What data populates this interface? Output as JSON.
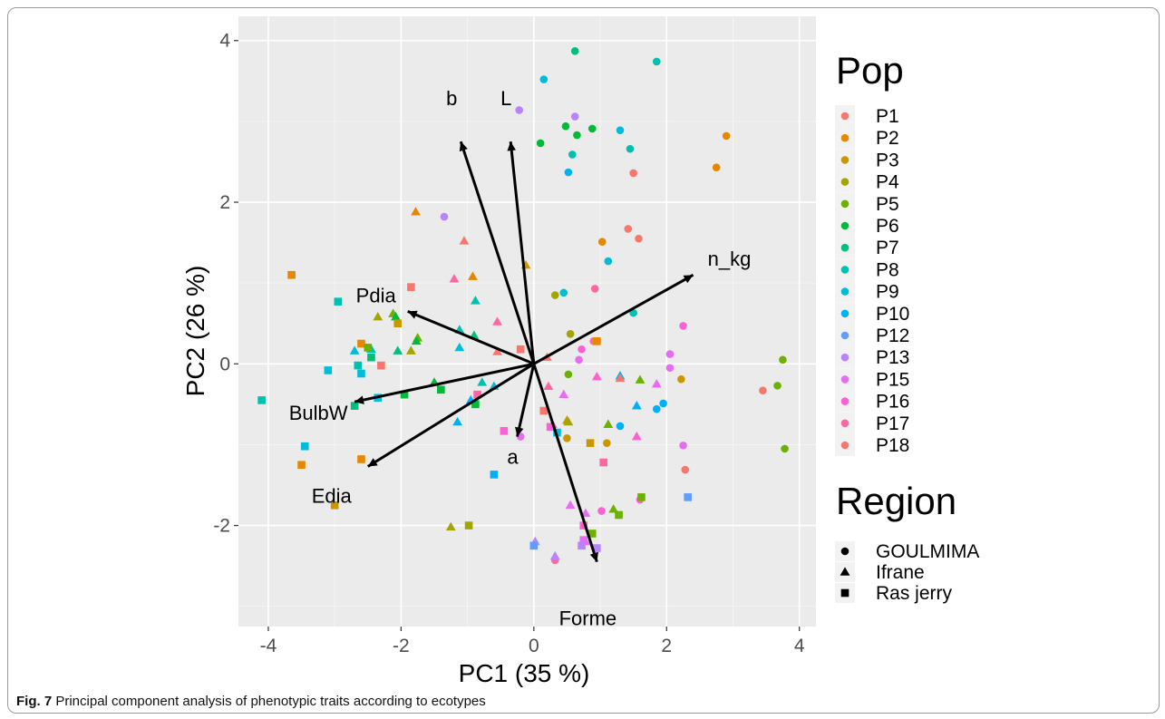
{
  "figure_caption": {
    "label": "Fig. 7",
    "text": "Principal component analysis of phenotypic traits according to ecotypes"
  },
  "chart_data": {
    "type": "scatter",
    "subtype": "pca-biplot",
    "xlabel": "PC1 (35 %)",
    "ylabel": "PC2 (26 %)",
    "xlim": [
      -4.45,
      4.25
    ],
    "ylim": [
      -3.25,
      4.3
    ],
    "xticks": [
      -4,
      -2,
      0,
      2,
      4
    ],
    "yticks": [
      -2,
      0,
      2,
      4
    ],
    "grid": true,
    "legend_position": "right",
    "legend_color_title": "Pop",
    "legend_shape_title": "Region",
    "populations": [
      "P1",
      "P2",
      "P3",
      "P4",
      "P5",
      "P6",
      "P7",
      "P8",
      "P9",
      "P10",
      "P12",
      "P13",
      "P15",
      "P16",
      "P17",
      "P18"
    ],
    "colors": {
      "P1": "#f8766d",
      "P2": "#e58700",
      "P3": "#c99800",
      "P4": "#a3a500",
      "P5": "#6bb100",
      "P6": "#00ba38",
      "P7": "#00bf7d",
      "P8": "#00c0af",
      "P9": "#00bcd8",
      "P10": "#00b0f6",
      "P12": "#619cff",
      "P13": "#b983ff",
      "P15": "#e76bf3",
      "P16": "#fd61d1",
      "P17": "#ff67a4",
      "P18": "#f8766d"
    },
    "regions": [
      {
        "name": "GOULMIMA",
        "shape": "circle"
      },
      {
        "name": "Ifrane",
        "shape": "triangle"
      },
      {
        "name": "Ras jerry",
        "shape": "square"
      }
    ],
    "vectors": [
      {
        "label": "b",
        "x": -1.1,
        "y": 2.75
      },
      {
        "label": "L",
        "x": -0.35,
        "y": 2.75
      },
      {
        "label": "n_kg",
        "x": 2.4,
        "y": 1.1
      },
      {
        "label": "Pdia",
        "x": -1.9,
        "y": 0.65
      },
      {
        "label": "BulbW",
        "x": -2.7,
        "y": -0.47
      },
      {
        "label": "Edia",
        "x": -2.5,
        "y": -1.27
      },
      {
        "label": "a",
        "x": -0.25,
        "y": -0.9
      },
      {
        "label": "Forme",
        "x": 0.95,
        "y": -2.45
      }
    ],
    "points": [
      {
        "x": 0.62,
        "y": 3.87,
        "shape": "circle",
        "pop": "P7"
      },
      {
        "x": 1.85,
        "y": 3.74,
        "shape": "circle",
        "pop": "P8"
      },
      {
        "x": 0.15,
        "y": 3.52,
        "shape": "circle",
        "pop": "P9"
      },
      {
        "x": -0.22,
        "y": 3.14,
        "shape": "circle",
        "pop": "P13"
      },
      {
        "x": 0.62,
        "y": 3.06,
        "shape": "circle",
        "pop": "P13"
      },
      {
        "x": 0.48,
        "y": 2.94,
        "shape": "circle",
        "pop": "P6"
      },
      {
        "x": 0.88,
        "y": 2.91,
        "shape": "circle",
        "pop": "P6"
      },
      {
        "x": 0.65,
        "y": 2.83,
        "shape": "circle",
        "pop": "P6"
      },
      {
        "x": 1.3,
        "y": 2.89,
        "shape": "circle",
        "pop": "P9"
      },
      {
        "x": 2.9,
        "y": 2.82,
        "shape": "circle",
        "pop": "P2"
      },
      {
        "x": 0.1,
        "y": 2.73,
        "shape": "circle",
        "pop": "P6"
      },
      {
        "x": 1.45,
        "y": 2.66,
        "shape": "circle",
        "pop": "P8"
      },
      {
        "x": 0.58,
        "y": 2.59,
        "shape": "circle",
        "pop": "P8"
      },
      {
        "x": 2.75,
        "y": 2.43,
        "shape": "circle",
        "pop": "P2"
      },
      {
        "x": 0.52,
        "y": 2.37,
        "shape": "circle",
        "pop": "P10"
      },
      {
        "x": 1.5,
        "y": 2.36,
        "shape": "circle",
        "pop": "P1"
      },
      {
        "x": -1.35,
        "y": 1.82,
        "shape": "circle",
        "pop": "P13"
      },
      {
        "x": 1.42,
        "y": 1.67,
        "shape": "circle",
        "pop": "P18"
      },
      {
        "x": 1.58,
        "y": 1.55,
        "shape": "circle",
        "pop": "P1"
      },
      {
        "x": 1.03,
        "y": 1.51,
        "shape": "circle",
        "pop": "P2"
      },
      {
        "x": 1.12,
        "y": 1.27,
        "shape": "circle",
        "pop": "P9"
      },
      {
        "x": 0.92,
        "y": 0.93,
        "shape": "circle",
        "pop": "P17"
      },
      {
        "x": 0.45,
        "y": 0.88,
        "shape": "circle",
        "pop": "P9"
      },
      {
        "x": 0.32,
        "y": 0.85,
        "shape": "circle",
        "pop": "P4"
      },
      {
        "x": 1.5,
        "y": 0.63,
        "shape": "circle",
        "pop": "P8"
      },
      {
        "x": 2.25,
        "y": 0.47,
        "shape": "circle",
        "pop": "P16"
      },
      {
        "x": 0.55,
        "y": 0.37,
        "shape": "circle",
        "pop": "P4"
      },
      {
        "x": 0.9,
        "y": 0.28,
        "shape": "circle",
        "pop": "P17"
      },
      {
        "x": 0.72,
        "y": 0.18,
        "shape": "circle",
        "pop": "P16"
      },
      {
        "x": 2.05,
        "y": 0.12,
        "shape": "circle",
        "pop": "P15"
      },
      {
        "x": 3.75,
        "y": 0.05,
        "shape": "circle",
        "pop": "P5"
      },
      {
        "x": 0.68,
        "y": 0.05,
        "shape": "circle",
        "pop": "P15"
      },
      {
        "x": 2.05,
        "y": -0.05,
        "shape": "circle",
        "pop": "P15"
      },
      {
        "x": 0.52,
        "y": -0.13,
        "shape": "circle",
        "pop": "P5"
      },
      {
        "x": 2.22,
        "y": -0.19,
        "shape": "circle",
        "pop": "P3"
      },
      {
        "x": 3.67,
        "y": -0.27,
        "shape": "circle",
        "pop": "P5"
      },
      {
        "x": 3.45,
        "y": -0.33,
        "shape": "circle",
        "pop": "P18"
      },
      {
        "x": 1.95,
        "y": -0.49,
        "shape": "circle",
        "pop": "P10"
      },
      {
        "x": 1.85,
        "y": -0.56,
        "shape": "circle",
        "pop": "P10"
      },
      {
        "x": 1.3,
        "y": -0.77,
        "shape": "circle",
        "pop": "P10"
      },
      {
        "x": -0.2,
        "y": -0.9,
        "shape": "circle",
        "pop": "P15"
      },
      {
        "x": 0.5,
        "y": -0.92,
        "shape": "circle",
        "pop": "P3"
      },
      {
        "x": 1.1,
        "y": -0.98,
        "shape": "circle",
        "pop": "P3"
      },
      {
        "x": 2.25,
        "y": -1.01,
        "shape": "circle",
        "pop": "P15"
      },
      {
        "x": 3.78,
        "y": -1.05,
        "shape": "circle",
        "pop": "P5"
      },
      {
        "x": 2.28,
        "y": -1.31,
        "shape": "circle",
        "pop": "P18"
      },
      {
        "x": 1.6,
        "y": -1.68,
        "shape": "circle",
        "pop": "P16"
      },
      {
        "x": 1.02,
        "y": -1.82,
        "shape": "circle",
        "pop": "P16"
      },
      {
        "x": 0.32,
        "y": -2.43,
        "shape": "circle",
        "pop": "P17"
      },
      {
        "x": -1.78,
        "y": 1.88,
        "shape": "triangle",
        "pop": "P2"
      },
      {
        "x": -1.05,
        "y": 1.52,
        "shape": "triangle",
        "pop": "P18"
      },
      {
        "x": -0.12,
        "y": 1.22,
        "shape": "triangle",
        "pop": "P3"
      },
      {
        "x": -1.2,
        "y": 1.05,
        "shape": "triangle",
        "pop": "P17"
      },
      {
        "x": -0.92,
        "y": 1.08,
        "shape": "triangle",
        "pop": "P2"
      },
      {
        "x": -0.88,
        "y": 0.78,
        "shape": "triangle",
        "pop": "P8"
      },
      {
        "x": -2.35,
        "y": 0.58,
        "shape": "triangle",
        "pop": "P4"
      },
      {
        "x": -2.12,
        "y": 0.62,
        "shape": "triangle",
        "pop": "P5"
      },
      {
        "x": -2.08,
        "y": 0.58,
        "shape": "triangle",
        "pop": "P6"
      },
      {
        "x": -0.55,
        "y": 0.52,
        "shape": "triangle",
        "pop": "P17"
      },
      {
        "x": -1.12,
        "y": 0.42,
        "shape": "triangle",
        "pop": "P8"
      },
      {
        "x": -1.75,
        "y": 0.32,
        "shape": "triangle",
        "pop": "P5"
      },
      {
        "x": -1.77,
        "y": 0.28,
        "shape": "triangle",
        "pop": "P6"
      },
      {
        "x": -0.9,
        "y": 0.35,
        "shape": "triangle",
        "pop": "P7"
      },
      {
        "x": -1.12,
        "y": 0.2,
        "shape": "triangle",
        "pop": "P9"
      },
      {
        "x": -2.7,
        "y": 0.16,
        "shape": "triangle",
        "pop": "P9"
      },
      {
        "x": -2.45,
        "y": 0.18,
        "shape": "triangle",
        "pop": "P8"
      },
      {
        "x": -2.05,
        "y": 0.16,
        "shape": "triangle",
        "pop": "P7"
      },
      {
        "x": -1.85,
        "y": 0.16,
        "shape": "triangle",
        "pop": "P4"
      },
      {
        "x": -0.55,
        "y": 0.15,
        "shape": "triangle",
        "pop": "P1"
      },
      {
        "x": 0.2,
        "y": 0.08,
        "shape": "triangle",
        "pop": "P18"
      },
      {
        "x": 1.3,
        "y": -0.15,
        "shape": "triangle",
        "pop": "P10"
      },
      {
        "x": 1.6,
        "y": -0.2,
        "shape": "triangle",
        "pop": "P5"
      },
      {
        "x": 1.85,
        "y": -0.25,
        "shape": "triangle",
        "pop": "P15"
      },
      {
        "x": 1.3,
        "y": -0.18,
        "shape": "triangle",
        "pop": "P18"
      },
      {
        "x": 0.95,
        "y": -0.16,
        "shape": "triangle",
        "pop": "P16"
      },
      {
        "x": -1.5,
        "y": -0.23,
        "shape": "triangle",
        "pop": "P6"
      },
      {
        "x": -0.78,
        "y": -0.23,
        "shape": "triangle",
        "pop": "P8"
      },
      {
        "x": -0.6,
        "y": -0.28,
        "shape": "triangle",
        "pop": "P9"
      },
      {
        "x": 0.22,
        "y": -0.28,
        "shape": "triangle",
        "pop": "P17"
      },
      {
        "x": 0.45,
        "y": -0.38,
        "shape": "triangle",
        "pop": "P15"
      },
      {
        "x": -0.95,
        "y": -0.45,
        "shape": "triangle",
        "pop": "P10"
      },
      {
        "x": 1.55,
        "y": -0.52,
        "shape": "triangle",
        "pop": "P10"
      },
      {
        "x": 0.5,
        "y": -0.7,
        "shape": "triangle",
        "pop": "P3"
      },
      {
        "x": 0.52,
        "y": -0.72,
        "shape": "triangle",
        "pop": "P4"
      },
      {
        "x": -1.15,
        "y": -0.72,
        "shape": "triangle",
        "pop": "P10"
      },
      {
        "x": 0.28,
        "y": -0.75,
        "shape": "triangle",
        "pop": "P16"
      },
      {
        "x": 1.12,
        "y": -0.75,
        "shape": "triangle",
        "pop": "P5"
      },
      {
        "x": 1.55,
        "y": -0.9,
        "shape": "triangle",
        "pop": "P16"
      },
      {
        "x": 0.55,
        "y": -1.75,
        "shape": "triangle",
        "pop": "P15"
      },
      {
        "x": 1.2,
        "y": -1.8,
        "shape": "triangle",
        "pop": "P5"
      },
      {
        "x": 0.78,
        "y": -1.85,
        "shape": "triangle",
        "pop": "P15"
      },
      {
        "x": -1.25,
        "y": -2.02,
        "shape": "triangle",
        "pop": "P4"
      },
      {
        "x": 0.02,
        "y": -2.2,
        "shape": "triangle",
        "pop": "P13"
      },
      {
        "x": 0.78,
        "y": -2.2,
        "shape": "triangle",
        "pop": "P15"
      },
      {
        "x": 0.32,
        "y": -2.38,
        "shape": "triangle",
        "pop": "P13"
      },
      {
        "x": -3.65,
        "y": 1.1,
        "shape": "square",
        "pop": "P2"
      },
      {
        "x": -1.85,
        "y": 0.95,
        "shape": "square",
        "pop": "P18"
      },
      {
        "x": -2.95,
        "y": 0.77,
        "shape": "square",
        "pop": "P8"
      },
      {
        "x": -2.05,
        "y": 0.5,
        "shape": "square",
        "pop": "P3"
      },
      {
        "x": -2.6,
        "y": 0.25,
        "shape": "square",
        "pop": "P2"
      },
      {
        "x": -2.5,
        "y": 0.2,
        "shape": "square",
        "pop": "P5"
      },
      {
        "x": -2.45,
        "y": 0.08,
        "shape": "square",
        "pop": "P7"
      },
      {
        "x": -2.65,
        "y": -0.02,
        "shape": "square",
        "pop": "P8"
      },
      {
        "x": -2.3,
        "y": -0.02,
        "shape": "square",
        "pop": "P18"
      },
      {
        "x": -3.1,
        "y": -0.08,
        "shape": "square",
        "pop": "P9"
      },
      {
        "x": -2.6,
        "y": -0.12,
        "shape": "square",
        "pop": "P9"
      },
      {
        "x": -0.2,
        "y": 0.18,
        "shape": "square",
        "pop": "P1"
      },
      {
        "x": 0.95,
        "y": 0.28,
        "shape": "square",
        "pop": "P2"
      },
      {
        "x": -1.4,
        "y": -0.32,
        "shape": "square",
        "pop": "P6"
      },
      {
        "x": -0.85,
        "y": -0.38,
        "shape": "square",
        "pop": "P17"
      },
      {
        "x": -1.95,
        "y": -0.38,
        "shape": "square",
        "pop": "P6"
      },
      {
        "x": -2.35,
        "y": -0.42,
        "shape": "square",
        "pop": "P9"
      },
      {
        "x": -4.1,
        "y": -0.45,
        "shape": "square",
        "pop": "P8"
      },
      {
        "x": -0.88,
        "y": -0.5,
        "shape": "square",
        "pop": "P6"
      },
      {
        "x": -2.7,
        "y": -0.52,
        "shape": "square",
        "pop": "P7"
      },
      {
        "x": 0.15,
        "y": -0.58,
        "shape": "square",
        "pop": "P1"
      },
      {
        "x": 0.25,
        "y": -0.78,
        "shape": "square",
        "pop": "P16"
      },
      {
        "x": 0.85,
        "y": -0.98,
        "shape": "square",
        "pop": "P3"
      },
      {
        "x": -3.45,
        "y": -1.02,
        "shape": "square",
        "pop": "P9"
      },
      {
        "x": -2.6,
        "y": -1.18,
        "shape": "square",
        "pop": "P2"
      },
      {
        "x": 1.05,
        "y": -1.22,
        "shape": "square",
        "pop": "P17"
      },
      {
        "x": -3.5,
        "y": -1.25,
        "shape": "square",
        "pop": "P2"
      },
      {
        "x": -0.6,
        "y": -1.37,
        "shape": "square",
        "pop": "P10"
      },
      {
        "x": 1.62,
        "y": -1.65,
        "shape": "square",
        "pop": "P5"
      },
      {
        "x": 2.32,
        "y": -1.65,
        "shape": "square",
        "pop": "P12"
      },
      {
        "x": -3.0,
        "y": -1.75,
        "shape": "square",
        "pop": "P3"
      },
      {
        "x": 1.28,
        "y": -1.87,
        "shape": "square",
        "pop": "P5"
      },
      {
        "x": -0.98,
        "y": -2.0,
        "shape": "square",
        "pop": "P4"
      },
      {
        "x": 0.75,
        "y": -2.0,
        "shape": "square",
        "pop": "P16"
      },
      {
        "x": 0.88,
        "y": -2.1,
        "shape": "square",
        "pop": "P5"
      },
      {
        "x": 0.75,
        "y": -2.18,
        "shape": "square",
        "pop": "P15"
      },
      {
        "x": 0.0,
        "y": -2.25,
        "shape": "square",
        "pop": "P12"
      },
      {
        "x": 0.72,
        "y": -2.25,
        "shape": "square",
        "pop": "P13"
      },
      {
        "x": 0.95,
        "y": -2.28,
        "shape": "square",
        "pop": "P13"
      },
      {
        "x": -0.45,
        "y": -0.83,
        "shape": "square",
        "pop": "P16"
      },
      {
        "x": 0.35,
        "y": -0.85,
        "shape": "square",
        "pop": "P9"
      }
    ]
  }
}
